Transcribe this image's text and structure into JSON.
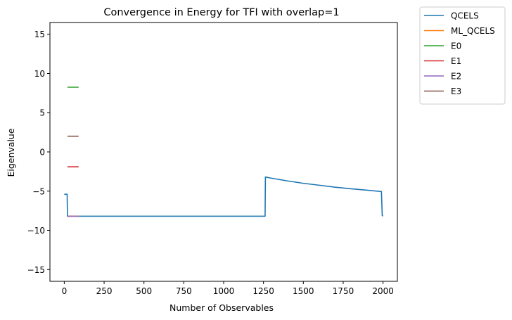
{
  "chart_data": {
    "type": "line",
    "title": "Convergence in Energy for TFI with overlap=1",
    "xlabel": "Number of Observables",
    "ylabel": "Eigenvalue",
    "xlim": [
      -90,
      2090
    ],
    "ylim": [
      -16.5,
      16.5
    ],
    "xticks": [
      0,
      250,
      500,
      750,
      1000,
      1250,
      1500,
      1750,
      2000
    ],
    "yticks": [
      -15,
      -10,
      -5,
      0,
      5,
      10,
      15
    ],
    "grid": false,
    "legend_position": "outside top-right",
    "series": [
      {
        "name": "QCELS",
        "color": "#1f77b4",
        "x": [
          0,
          18,
          20,
          1260,
          1262,
          1300,
          1400,
          1500,
          1600,
          1700,
          1800,
          1900,
          1990,
          1995,
          2000
        ],
        "y": [
          -5.4,
          -5.4,
          -8.2,
          -8.2,
          -3.2,
          -3.35,
          -3.7,
          -4.0,
          -4.25,
          -4.5,
          -4.7,
          -4.88,
          -5.05,
          -8.1,
          -8.2
        ]
      },
      {
        "name": "ML_QCELS",
        "color": "#ff7f0e",
        "x": [
          20,
          90
        ],
        "y": [
          -8.2,
          -8.2
        ]
      },
      {
        "name": "E0",
        "color": "#2ca02c",
        "x": [
          20,
          90
        ],
        "y": [
          8.25,
          8.25
        ]
      },
      {
        "name": "E1",
        "color": "#d62728",
        "x": [
          20,
          90
        ],
        "y": [
          -1.9,
          -1.9
        ]
      },
      {
        "name": "E2",
        "color": "#9467bd",
        "x": [
          20,
          90
        ],
        "y": [
          -8.2,
          -8.2
        ]
      },
      {
        "name": "E3",
        "color": "#8c564b",
        "x": [
          20,
          90
        ],
        "y": [
          2.0,
          2.0
        ]
      }
    ]
  }
}
